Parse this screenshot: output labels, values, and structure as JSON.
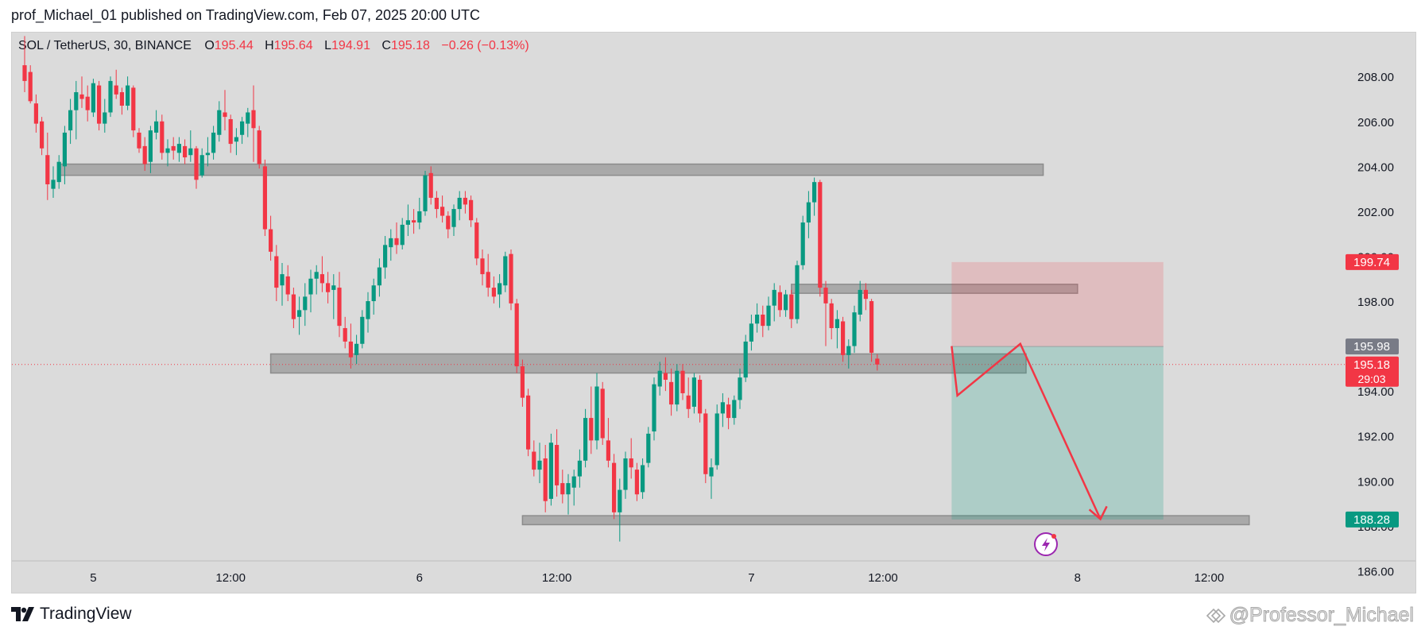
{
  "publish_line": "prof_Michael_01 published on TradingView.com, Feb 07, 2025 20:00 UTC",
  "footer": {
    "brand": "TradingView",
    "watermark": "@Professor_Michael"
  },
  "chart_data": {
    "type": "candlestick",
    "symbol_line": {
      "symbol": "SOL / TetherUS, 30, BINANCE",
      "o_label": "O",
      "o": "195.44",
      "h_label": "H",
      "h": "195.64",
      "l_label": "L",
      "l": "194.91",
      "c_label": "C",
      "c": "195.18",
      "change": "−0.26 (−0.13%)"
    },
    "y_ticks": [
      "186.00",
      "188.00",
      "190.00",
      "192.00",
      "194.00",
      "196.00",
      "198.00",
      "200.00",
      "202.00",
      "204.00",
      "206.00",
      "208.00"
    ],
    "x_ticks": [
      "5",
      "12:00",
      "6",
      "12:00",
      "7",
      "12:00",
      "8",
      "12:00"
    ],
    "ylim": [
      185.2,
      209.6
    ],
    "price_tags": [
      {
        "price": 199.74,
        "label": "199.74",
        "color": "#f23645",
        "sub": ""
      },
      {
        "price": 195.98,
        "label": "195.98",
        "color": "#787b86",
        "sub": ""
      },
      {
        "price": 195.18,
        "label": "195.18",
        "color": "#f23645",
        "sub": "29:03"
      },
      {
        "price": 188.28,
        "label": "188.28",
        "color": "#089981",
        "sub": ""
      }
    ],
    "current_price": 195.18,
    "zones": [
      {
        "name": "resistance-zone-204",
        "x_start": 6,
        "x_end": 178,
        "y_low": 203.6,
        "y_high": 204.1
      },
      {
        "name": "support-zone-195",
        "x_start": 43,
        "x_end": 175,
        "y_low": 194.8,
        "y_high": 195.65
      },
      {
        "name": "zone-198",
        "x_start": 134,
        "x_end": 184,
        "y_low": 198.35,
        "y_high": 198.75
      },
      {
        "name": "zone-188",
        "x_start": 87,
        "x_end": 214,
        "y_low": 188.05,
        "y_high": 188.45
      }
    ],
    "position": {
      "x_start": 162,
      "x_end": 199,
      "entry": 195.98,
      "stop": 199.74,
      "target": 188.28
    },
    "projection": [
      {
        "x": 162,
        "y": 196.0
      },
      {
        "x": 163,
        "y": 193.8
      },
      {
        "x": 174,
        "y": 196.1
      },
      {
        "x": 188,
        "y": 188.3
      }
    ],
    "x_tick_positions": [
      12,
      36,
      69,
      93,
      127,
      150,
      184,
      207
    ],
    "candles": [
      [
        208.5,
        209.8,
        207.3,
        207.8
      ],
      [
        208.2,
        208.5,
        206.8,
        206.9
      ],
      [
        206.8,
        207.2,
        205.5,
        205.9
      ],
      [
        206.0,
        206.2,
        204.5,
        204.8
      ],
      [
        204.5,
        205.5,
        202.5,
        203.2
      ],
      [
        203.0,
        204.0,
        202.6,
        203.4
      ],
      [
        203.3,
        204.5,
        203.0,
        204.2
      ],
      [
        204.0,
        205.8,
        203.2,
        205.5
      ],
      [
        205.6,
        207.0,
        205.0,
        206.5
      ],
      [
        206.5,
        207.8,
        205.2,
        207.3
      ],
      [
        207.2,
        208.0,
        206.6,
        207.0
      ],
      [
        207.1,
        207.6,
        206.0,
        206.5
      ],
      [
        206.4,
        207.9,
        206.2,
        207.7
      ],
      [
        207.6,
        207.8,
        205.6,
        205.9
      ],
      [
        205.9,
        207.0,
        205.5,
        206.4
      ],
      [
        206.4,
        208.0,
        206.2,
        207.8
      ],
      [
        207.6,
        208.3,
        207.0,
        207.2
      ],
      [
        207.3,
        207.5,
        206.3,
        206.7
      ],
      [
        206.7,
        208.0,
        206.5,
        207.6
      ],
      [
        207.5,
        207.6,
        205.3,
        205.6
      ],
      [
        205.5,
        205.7,
        204.6,
        204.8
      ],
      [
        204.9,
        205.3,
        203.8,
        204.1
      ],
      [
        204.2,
        205.8,
        203.7,
        205.6
      ],
      [
        205.5,
        206.5,
        205.2,
        206.0
      ],
      [
        206.0,
        206.3,
        204.3,
        204.6
      ],
      [
        204.6,
        205.2,
        204.0,
        204.8
      ],
      [
        204.9,
        205.3,
        204.3,
        204.7
      ],
      [
        204.6,
        205.3,
        204.2,
        205.0
      ],
      [
        204.9,
        205.2,
        204.1,
        204.4
      ],
      [
        204.5,
        205.6,
        204.2,
        204.8
      ],
      [
        204.8,
        204.9,
        203.0,
        203.4
      ],
      [
        203.6,
        204.8,
        203.5,
        204.5
      ],
      [
        204.5,
        205.3,
        204.0,
        204.6
      ],
      [
        204.6,
        205.8,
        204.3,
        205.5
      ],
      [
        205.4,
        206.9,
        205.1,
        206.5
      ],
      [
        206.4,
        207.4,
        205.6,
        206.2
      ],
      [
        206.1,
        206.3,
        204.6,
        205.0
      ],
      [
        205.1,
        205.7,
        204.5,
        205.3
      ],
      [
        205.4,
        206.2,
        205.0,
        206.0
      ],
      [
        205.9,
        206.6,
        205.3,
        206.4
      ],
      [
        206.5,
        207.6,
        204.2,
        205.7
      ],
      [
        205.6,
        205.8,
        203.9,
        204.1
      ],
      [
        204.0,
        204.3,
        200.9,
        201.2
      ],
      [
        201.2,
        201.8,
        199.8,
        200.2
      ],
      [
        200.0,
        200.5,
        198.0,
        198.6
      ],
      [
        198.7,
        199.7,
        197.8,
        199.2
      ],
      [
        199.1,
        199.6,
        198.0,
        198.3
      ],
      [
        198.3,
        198.6,
        196.8,
        197.2
      ],
      [
        197.3,
        198.2,
        196.5,
        197.6
      ],
      [
        197.6,
        198.8,
        196.9,
        198.2
      ],
      [
        198.3,
        199.4,
        197.5,
        199.0
      ],
      [
        199.0,
        199.6,
        198.3,
        199.3
      ],
      [
        199.2,
        200.0,
        198.4,
        198.8
      ],
      [
        198.8,
        199.3,
        197.9,
        198.4
      ],
      [
        198.5,
        199.2,
        197.2,
        198.7
      ],
      [
        198.6,
        199.3,
        196.4,
        196.9
      ],
      [
        196.8,
        197.3,
        195.9,
        196.2
      ],
      [
        196.2,
        197.0,
        195.0,
        195.5
      ],
      [
        195.6,
        196.5,
        195.2,
        196.1
      ],
      [
        196.1,
        197.6,
        195.9,
        197.3
      ],
      [
        197.2,
        198.4,
        196.6,
        198.0
      ],
      [
        198.0,
        199.0,
        197.4,
        198.7
      ],
      [
        198.7,
        199.9,
        198.2,
        199.5
      ],
      [
        199.5,
        200.9,
        199.0,
        200.5
      ],
      [
        200.4,
        201.2,
        199.8,
        200.8
      ],
      [
        200.8,
        201.5,
        200.1,
        200.5
      ],
      [
        200.5,
        201.7,
        200.3,
        201.4
      ],
      [
        201.4,
        202.3,
        200.9,
        201.6
      ],
      [
        201.6,
        202.1,
        201.0,
        201.5
      ],
      [
        201.5,
        202.6,
        201.2,
        202.0
      ],
      [
        202.0,
        203.8,
        201.8,
        203.6
      ],
      [
        203.7,
        204.0,
        202.3,
        202.6
      ],
      [
        202.6,
        202.9,
        201.7,
        202.1
      ],
      [
        202.2,
        202.7,
        201.5,
        201.8
      ],
      [
        201.8,
        202.0,
        200.8,
        201.2
      ],
      [
        201.3,
        202.3,
        200.9,
        202.1
      ],
      [
        202.1,
        202.9,
        201.6,
        202.6
      ],
      [
        202.6,
        202.9,
        201.9,
        202.3
      ],
      [
        202.5,
        202.7,
        201.3,
        201.6
      ],
      [
        201.5,
        201.7,
        199.6,
        199.9
      ],
      [
        199.9,
        200.3,
        198.7,
        199.2
      ],
      [
        199.3,
        200.1,
        198.2,
        198.6
      ],
      [
        198.6,
        199.1,
        197.9,
        198.2
      ],
      [
        198.3,
        199.2,
        197.7,
        198.8
      ],
      [
        198.7,
        200.2,
        198.4,
        200.0
      ],
      [
        200.1,
        200.3,
        197.6,
        197.9
      ],
      [
        197.9,
        198.1,
        194.8,
        195.1
      ],
      [
        195.1,
        195.4,
        193.3,
        193.7
      ],
      [
        193.8,
        194.1,
        191.1,
        191.4
      ],
      [
        191.3,
        191.8,
        190.2,
        190.5
      ],
      [
        190.5,
        191.7,
        189.9,
        190.9
      ],
      [
        191.0,
        191.6,
        188.6,
        189.1
      ],
      [
        189.2,
        192.1,
        188.9,
        191.7
      ],
      [
        191.6,
        192.3,
        189.3,
        189.8
      ],
      [
        189.9,
        190.5,
        189.0,
        189.4
      ],
      [
        189.4,
        190.3,
        188.5,
        189.9
      ],
      [
        189.7,
        190.5,
        188.9,
        190.2
      ],
      [
        190.2,
        191.4,
        189.7,
        190.9
      ],
      [
        190.9,
        193.2,
        190.6,
        192.8
      ],
      [
        192.8,
        194.2,
        191.2,
        191.8
      ],
      [
        191.8,
        194.8,
        191.4,
        194.2
      ],
      [
        194.1,
        194.4,
        191.6,
        191.9
      ],
      [
        191.8,
        192.8,
        190.6,
        190.9
      ],
      [
        190.8,
        191.2,
        188.3,
        188.6
      ],
      [
        188.6,
        190.1,
        187.3,
        189.6
      ],
      [
        189.6,
        191.3,
        189.2,
        191.0
      ],
      [
        191.0,
        191.9,
        190.1,
        190.6
      ],
      [
        190.5,
        190.8,
        189.1,
        189.4
      ],
      [
        189.5,
        191.0,
        189.2,
        190.7
      ],
      [
        190.8,
        192.4,
        190.6,
        192.1
      ],
      [
        192.2,
        194.6,
        191.8,
        194.3
      ],
      [
        194.2,
        195.3,
        193.8,
        194.9
      ],
      [
        194.8,
        195.5,
        194.0,
        194.5
      ],
      [
        194.4,
        195.0,
        192.9,
        193.4
      ],
      [
        193.4,
        195.2,
        193.1,
        194.9
      ],
      [
        194.9,
        195.2,
        193.6,
        193.9
      ],
      [
        193.8,
        194.6,
        192.8,
        193.2
      ],
      [
        193.3,
        194.8,
        193.0,
        194.6
      ],
      [
        194.5,
        194.7,
        192.6,
        193.0
      ],
      [
        193.0,
        193.2,
        189.9,
        190.3
      ],
      [
        190.2,
        191.0,
        189.2,
        190.6
      ],
      [
        190.7,
        193.4,
        190.5,
        193.0
      ],
      [
        193.0,
        193.9,
        192.4,
        193.5
      ],
      [
        193.4,
        193.7,
        192.3,
        192.8
      ],
      [
        192.8,
        193.8,
        192.5,
        193.6
      ],
      [
        193.6,
        195.0,
        193.2,
        194.6
      ],
      [
        194.6,
        196.5,
        194.4,
        196.2
      ],
      [
        196.2,
        197.4,
        195.8,
        197.0
      ],
      [
        197.0,
        197.9,
        196.6,
        197.4
      ],
      [
        197.4,
        197.8,
        196.4,
        196.9
      ],
      [
        196.9,
        198.2,
        196.7,
        197.8
      ],
      [
        197.8,
        198.8,
        197.1,
        198.5
      ],
      [
        198.4,
        198.7,
        197.3,
        197.6
      ],
      [
        197.6,
        198.5,
        197.3,
        198.3
      ],
      [
        198.3,
        198.5,
        196.8,
        197.2
      ],
      [
        197.2,
        199.8,
        197.0,
        199.6
      ],
      [
        199.6,
        201.8,
        199.4,
        201.5
      ],
      [
        201.5,
        202.9,
        200.8,
        202.4
      ],
      [
        202.4,
        203.5,
        201.8,
        203.3
      ],
      [
        203.3,
        203.4,
        198.2,
        198.6
      ],
      [
        198.6,
        198.9,
        196.0,
        197.9
      ],
      [
        197.9,
        198.1,
        196.3,
        196.8
      ],
      [
        196.8,
        197.6,
        195.9,
        197.2
      ],
      [
        197.1,
        197.3,
        195.3,
        195.6
      ],
      [
        195.6,
        196.3,
        195.0,
        196.0
      ],
      [
        196.0,
        197.8,
        195.7,
        197.5
      ],
      [
        197.4,
        198.9,
        197.1,
        198.5
      ],
      [
        198.5,
        198.8,
        197.6,
        198.1
      ],
      [
        198.0,
        198.1,
        195.3,
        195.7
      ],
      [
        195.44,
        195.64,
        194.91,
        195.18
      ]
    ]
  }
}
